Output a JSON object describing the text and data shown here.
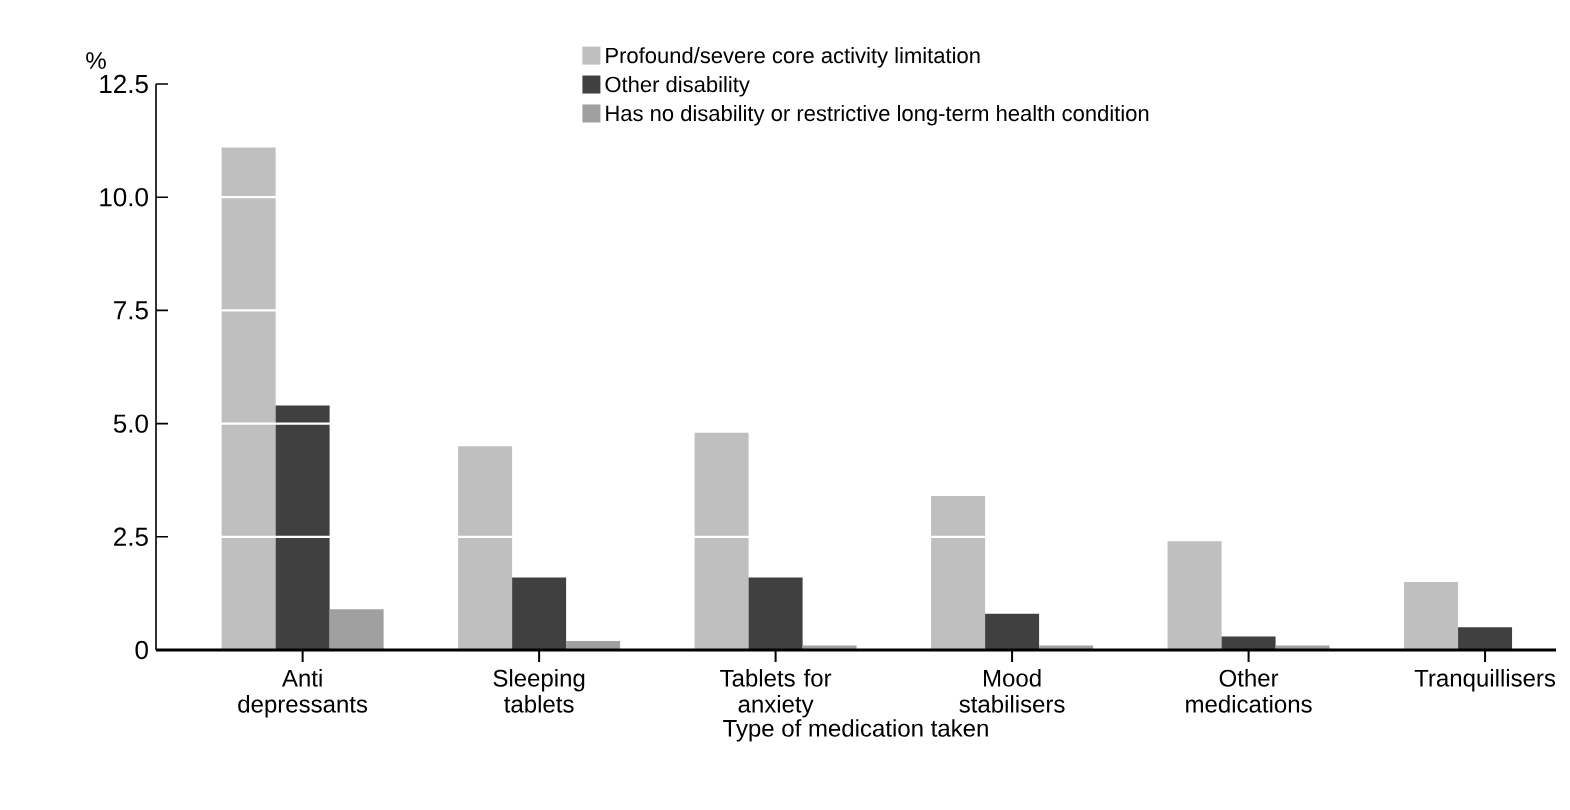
{
  "chart_data": {
    "type": "bar",
    "ylabel": "%",
    "xlabel": "Type of medication taken",
    "categories": [
      "Anti depressants",
      "Sleeping tablets",
      "Tablets for anxiety",
      "Mood stabilisers",
      "Other medications",
      "Tranquillisers"
    ],
    "series": [
      {
        "name": "Profound/severe core activity limitation",
        "color": "#bfbfbf",
        "values": [
          11.1,
          4.5,
          4.8,
          3.4,
          2.4,
          1.5
        ]
      },
      {
        "name": "Other disability",
        "color": "#404040",
        "values": [
          5.4,
          1.6,
          1.6,
          0.8,
          0.3,
          0.5
        ]
      },
      {
        "name": "Has no disability or restrictive long-term health condition",
        "color": "#a0a0a0",
        "values": [
          0.9,
          0.2,
          0.1,
          0.1,
          0.1,
          null
        ]
      }
    ],
    "ylim": [
      0,
      12.5
    ],
    "yticks": [
      0,
      2.5,
      {
        "value": 5,
        "label": "5.0"
      },
      7.5,
      {
        "value": 10,
        "label": "10.0"
      },
      12.5
    ],
    "grid": "y",
    "legend": "top right"
  }
}
